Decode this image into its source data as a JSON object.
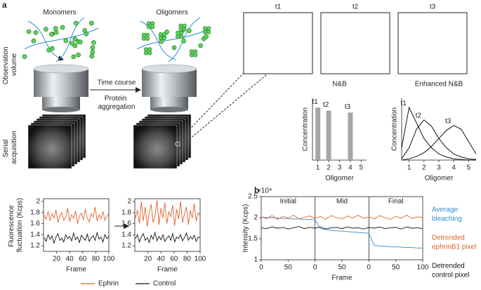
{
  "panel_labels": [
    "a",
    "b"
  ],
  "illustration": {
    "monomers": "Monomers",
    "oligomers": "Oligomers",
    "observation_volume": "Observation volume",
    "time_course": "Time course",
    "protein_aggregation": "Protein aggregation",
    "serial_acquisition": "Serial acquisition",
    "snapshots": [
      "t1",
      "t2",
      "t3"
    ]
  },
  "chart_data": [
    {
      "type": "bar",
      "title": "N&B",
      "ylabel": "Concentration",
      "xlabel": "Oligomer",
      "x": [
        1,
        2,
        4
      ],
      "values": [
        0.85,
        0.8,
        0.77
      ],
      "bar_labels": [
        "t1",
        "t2",
        "t3"
      ],
      "color": "#a6a6a6",
      "xlim": [
        0.5,
        5.5
      ],
      "xticks": [
        1,
        2,
        3,
        4,
        5
      ],
      "ylim": [
        0,
        1
      ]
    },
    {
      "type": "line",
      "title": "Enhanced N&B",
      "ylabel": "Concentration",
      "xlabel": "Oligomer",
      "x": [
        0.5,
        1,
        1.5,
        2,
        2.5,
        3,
        3.5,
        4,
        4.5,
        5,
        5.5
      ],
      "series": [
        {
          "name": "t1",
          "color": "#111111",
          "values": [
            0.2,
            0.85,
            0.6,
            0.35,
            0.2,
            0.1,
            0.05,
            0.02,
            0.01,
            0,
            0
          ]
        },
        {
          "name": "t2",
          "color": "#111111",
          "values": [
            0.02,
            0.2,
            0.5,
            0.65,
            0.55,
            0.35,
            0.2,
            0.1,
            0.05,
            0.02,
            0.01
          ]
        },
        {
          "name": "t3",
          "color": "#111111",
          "values": [
            0,
            0.02,
            0.06,
            0.12,
            0.22,
            0.35,
            0.48,
            0.56,
            0.5,
            0.3,
            0.1
          ]
        }
      ],
      "xlim": [
        0.5,
        5.5
      ],
      "xticks": [
        1,
        2,
        3,
        4,
        5
      ],
      "ylim": [
        0,
        1
      ]
    },
    {
      "type": "line",
      "ylabel": "Fluorescence fluctuation (Kcps)",
      "xlabel": "Frame",
      "x": [
        1,
        4,
        7,
        10,
        13,
        16,
        19,
        22,
        25,
        28,
        31,
        34,
        37,
        40,
        43,
        46,
        49,
        52,
        55,
        58,
        61,
        64,
        67,
        70,
        73,
        76,
        79,
        82,
        85,
        88,
        91,
        94,
        97,
        100
      ],
      "series": [
        {
          "name": "Ephrin",
          "color": "#e0622a",
          "values": [
            1.75,
            1.68,
            1.82,
            1.65,
            1.78,
            1.7,
            1.85,
            1.62,
            1.74,
            1.8,
            1.66,
            1.72,
            1.88,
            1.64,
            1.76,
            1.7,
            1.83,
            1.6,
            1.74,
            1.79,
            1.67,
            1.86,
            1.7,
            1.63,
            1.78,
            1.72,
            1.9,
            1.65,
            1.76,
            1.69,
            1.82,
            1.66,
            1.74,
            1.78
          ]
        },
        {
          "name": "Control",
          "color": "#111111",
          "values": [
            1.35,
            1.28,
            1.4,
            1.32,
            1.38,
            1.25,
            1.36,
            1.42,
            1.3,
            1.34,
            1.27,
            1.4,
            1.33,
            1.37,
            1.29,
            1.43,
            1.31,
            1.36,
            1.26,
            1.39,
            1.34,
            1.3,
            1.41,
            1.28,
            1.35,
            1.38,
            1.3,
            1.44,
            1.32,
            1.36,
            1.27,
            1.4,
            1.33,
            1.37
          ]
        }
      ],
      "xlim": [
        0,
        100
      ],
      "xticks": [
        20,
        40,
        60,
        80,
        100
      ],
      "ylim": [
        1.1,
        2.05
      ],
      "yticks": [
        1.2,
        1.4,
        1.6,
        1.8,
        2
      ],
      "legend": "bottom"
    },
    {
      "type": "line",
      "xlabel": "Frame",
      "x": [
        1,
        4,
        7,
        10,
        13,
        16,
        19,
        22,
        25,
        28,
        31,
        34,
        37,
        40,
        43,
        46,
        49,
        52,
        55,
        58,
        61,
        64,
        67,
        70,
        73,
        76,
        79,
        82,
        85,
        88,
        91,
        94,
        97,
        100
      ],
      "series": [
        {
          "color": "#e0622a",
          "values": [
            1.7,
            1.85,
            1.6,
            2.0,
            1.65,
            1.9,
            1.55,
            1.8,
            1.95,
            1.62,
            1.75,
            2.02,
            1.58,
            1.88,
            1.7,
            1.98,
            1.6,
            1.82,
            1.72,
            1.94,
            1.56,
            1.86,
            1.68,
            2.0,
            1.62,
            1.78,
            1.9,
            1.58,
            1.84,
            1.7,
            1.96,
            1.64,
            1.8,
            1.74
          ]
        },
        {
          "color": "#111111",
          "values": [
            1.33,
            1.4,
            1.27,
            1.36,
            1.42,
            1.3,
            1.35,
            1.26,
            1.39,
            1.32,
            1.44,
            1.29,
            1.37,
            1.31,
            1.4,
            1.28,
            1.34,
            1.38,
            1.3,
            1.42,
            1.27,
            1.36,
            1.33,
            1.4,
            1.29,
            1.35,
            1.43,
            1.3,
            1.37,
            1.32,
            1.39,
            1.28,
            1.36,
            1.34
          ]
        }
      ],
      "xlim": [
        0,
        100
      ],
      "xticks": [
        20,
        40,
        60,
        80,
        100
      ],
      "ylim": [
        1.1,
        2.05
      ],
      "yticks": [
        1.2,
        1.4,
        1.6,
        1.8,
        2
      ]
    },
    {
      "type": "line",
      "ylabel": "Intensity (Kcps)",
      "xlabel": "Frame",
      "exponent": "×10⁴",
      "segments": [
        "Initial",
        "Mid",
        "Final"
      ],
      "x": [
        0,
        10,
        20,
        30,
        40,
        50,
        60,
        70,
        80,
        90,
        100,
        110,
        120,
        130,
        140,
        150,
        160,
        170,
        180,
        190,
        200,
        210,
        220,
        230,
        240,
        250,
        260,
        270,
        280,
        290,
        300
      ],
      "series": [
        {
          "name": "Average bleaching",
          "color": "#2f8ccf",
          "values": [
            2.02,
            2.0,
            2.0,
            1.99,
            1.98,
            1.98,
            1.97,
            1.97,
            1.96,
            1.96,
            1.95,
            1.74,
            1.72,
            1.7,
            1.69,
            1.68,
            1.67,
            1.66,
            1.65,
            1.64,
            1.63,
            1.34,
            1.33,
            1.32,
            1.31,
            1.31,
            1.3,
            1.29,
            1.29,
            1.28,
            1.28
          ]
        },
        {
          "name": "Detrended ephrinB1 pixel",
          "color": "#e0622a",
          "values": [
            2.02,
            1.98,
            2.05,
            1.96,
            2.03,
            1.99,
            2.06,
            1.97,
            2.01,
            2.04,
            1.98,
            2.03,
            1.96,
            2.05,
            2.0,
            1.97,
            2.04,
            1.99,
            2.06,
            1.98,
            2.02,
            1.97,
            2.05,
            2.0,
            1.96,
            2.03,
            1.99,
            2.06,
            1.98,
            2.02,
            2.0
          ]
        },
        {
          "name": "Detrended control pixel",
          "color": "#111111",
          "values": [
            1.76,
            1.74,
            1.78,
            1.75,
            1.77,
            1.73,
            1.76,
            1.79,
            1.74,
            1.77,
            1.75,
            1.78,
            1.73,
            1.76,
            1.77,
            1.74,
            1.78,
            1.75,
            1.76,
            1.73,
            1.77,
            1.75,
            1.78,
            1.74,
            1.76,
            1.77,
            1.73,
            1.78,
            1.75,
            1.76,
            1.74
          ]
        }
      ],
      "xlim": [
        0,
        300
      ],
      "xticks": [
        0,
        50,
        {
          "value": 100,
          "label": "0"
        },
        {
          "value": 150,
          "label": "50"
        },
        {
          "value": 200,
          "label": "0"
        },
        {
          "value": 250,
          "label": "50"
        },
        {
          "value": 300,
          "label": "100"
        }
      ],
      "ylim": [
        1,
        2.5
      ],
      "yticks": [
        1,
        1.5,
        2,
        2.5
      ],
      "legend": "right"
    }
  ]
}
